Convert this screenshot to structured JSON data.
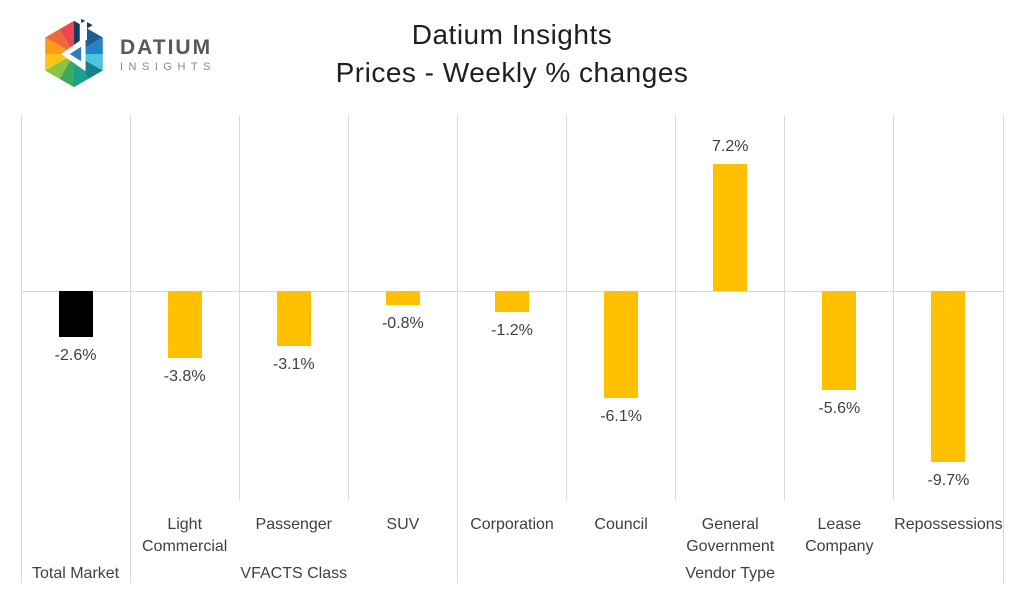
{
  "header": {
    "logo": {
      "brand": "DATIUM",
      "sub": "INSIGHTS"
    },
    "title_line1": "Datium Insights",
    "title_line2": "Prices - Weekly % changes"
  },
  "colors": {
    "bar_default": "#FFC000",
    "bar_highlight": "#000000",
    "gridline": "#D9D9D9",
    "label_text": "#404040"
  },
  "chart_data": {
    "type": "bar",
    "title": "Datium Insights",
    "subtitle": "Prices - Weekly % changes",
    "xlabel": "",
    "ylabel": "",
    "ylim": [
      -10,
      8
    ],
    "grid": "vertical category separators only, light gray zero baseline",
    "legend": "none",
    "categories": [
      "Total Market",
      "Light Commercial",
      "Passenger",
      "SUV",
      "Corporation",
      "Council",
      "General Government",
      "Lease Company",
      "Repossessions"
    ],
    "values": [
      -2.6,
      -3.8,
      -3.1,
      -0.8,
      -1.2,
      -6.1,
      7.2,
      -5.6,
      -9.7
    ],
    "data_labels": [
      "-2.6%",
      "-3.8%",
      "-3.1%",
      "-0.8%",
      "-1.2%",
      "-6.1%",
      "7.2%",
      "-5.6%",
      "-9.7%"
    ],
    "bar_colors": [
      "#000000",
      "#FFC000",
      "#FFC000",
      "#FFC000",
      "#FFC000",
      "#FFC000",
      "#FFC000",
      "#FFC000",
      "#FFC000"
    ],
    "tick_label_lines": [
      [],
      [
        "Light",
        "Commercial"
      ],
      [
        "Passenger"
      ],
      [
        "SUV"
      ],
      [
        "Corporation"
      ],
      [
        "Council"
      ],
      [
        "General",
        "Government"
      ],
      [
        "Lease",
        "Company"
      ],
      [
        "Repossessions"
      ]
    ],
    "groups": [
      {
        "label": "Total Market",
        "start": 0,
        "end": 0
      },
      {
        "label": "VFACTS Class",
        "start": 1,
        "end": 3
      },
      {
        "label": "Vendor Type",
        "start": 4,
        "end": 8
      }
    ]
  }
}
